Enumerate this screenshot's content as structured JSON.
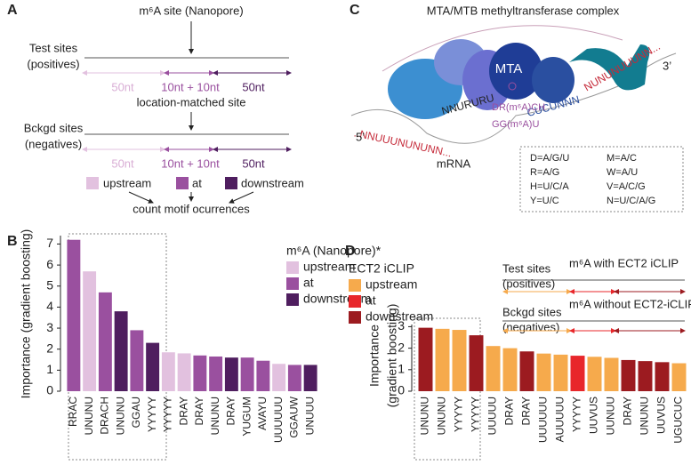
{
  "panel_a": {
    "letter": "A",
    "site": "m⁶A site (Nanopore)",
    "test": [
      "Test sites",
      "(positives)"
    ],
    "matched": "location-matched site",
    "bckgd": [
      "Bckgd sites",
      "(negatives)"
    ],
    "segments": [
      "50nt",
      "10nt + 10nt",
      "50nt"
    ],
    "legend": [
      "upstream",
      "at",
      "downstream"
    ],
    "footer": "count motif ocurrences"
  },
  "panel_c": {
    "letter": "C",
    "title": "MTA/MTB methyltransferase complex",
    "protein": "MTA",
    "mrna": "mRNA",
    "five": "5’",
    "three": "3’",
    "seq": [
      "..NNUUUNUNUNN...",
      "NNURURU",
      "CUCUNNN",
      "NUNUNUUUNN..."
    ],
    "motifs": [
      "DR(m⁶A)CH",
      "GG(m⁶A)U"
    ],
    "key": [
      "D=A/G/U",
      "R=A/G",
      "H=U/C/A",
      "Y=U/C",
      "M=A/C",
      "W=A/U",
      "V=A/C/G",
      "N=U/C/A/G"
    ]
  },
  "panel_d": {
    "letter": "D",
    "test": [
      "Test sites",
      "(positives)"
    ],
    "with": "m⁶A with ECT2 iCLIP",
    "bckgd": [
      "Bckgd sites",
      "(negatives)"
    ],
    "without": "m⁶A without ECT2-iCLIP"
  },
  "chart_data": [
    {
      "type": "bar",
      "panel": "B",
      "ylabel": [
        "Importance (gradient boosting)"
      ],
      "legend_title": "m⁶A (Nanopore)*",
      "categories": [
        "RRAC",
        "UNUNU",
        "DRACH",
        "UNUNU",
        "GGAU",
        "YYYYY",
        "YYYYY",
        "DRAY",
        "DRAY",
        "UNUNU",
        "DRAY",
        "YUGUM",
        "AVAYU",
        "UUUUUU",
        "GGAUW",
        "UNUUU"
      ],
      "series": [
        {
          "name": "upstream",
          "color": "#e2c1df",
          "values": [
            null,
            5.7,
            null,
            null,
            null,
            null,
            1.85,
            1.8,
            null,
            null,
            null,
            null,
            null,
            1.3,
            null,
            null
          ]
        },
        {
          "name": "at",
          "color": "#9a509f",
          "values": [
            7.2,
            null,
            4.7,
            null,
            2.9,
            null,
            null,
            null,
            1.7,
            1.65,
            null,
            1.6,
            1.45,
            null,
            1.25,
            null
          ]
        },
        {
          "name": "downstream",
          "color": "#4f1e5f",
          "values": [
            null,
            null,
            null,
            3.8,
            null,
            2.3,
            null,
            null,
            null,
            null,
            1.6,
            null,
            null,
            null,
            null,
            1.25
          ]
        }
      ],
      "ylim": [
        0,
        7.4
      ],
      "yticks": [
        0,
        1,
        2,
        3,
        4,
        5,
        6,
        7
      ]
    },
    {
      "type": "bar",
      "panel": "D",
      "ylabel": [
        "Importance",
        "(gradient boosting)"
      ],
      "legend_title": "ECT2 iCLIP",
      "categories": [
        "UNUNU",
        "UNUNU",
        "YYYYY",
        "YYYYY",
        "UUUUU",
        "DRAY",
        "DRAY",
        "UUUUUU",
        "AUUUUU",
        "YYYYY",
        "UUVUS",
        "UUNUU",
        "DRAY",
        "UNUNU",
        "UUVUS",
        "UGUCUC"
      ],
      "series": [
        {
          "name": "upstream",
          "color": "#f6aa4c",
          "values": [
            null,
            2.9,
            2.85,
            null,
            2.1,
            2.0,
            null,
            1.75,
            1.7,
            null,
            1.6,
            1.55,
            null,
            null,
            null,
            1.3
          ]
        },
        {
          "name": "at",
          "color": "#e8272b",
          "values": [
            null,
            null,
            null,
            null,
            null,
            null,
            null,
            null,
            null,
            1.65,
            null,
            null,
            null,
            null,
            null,
            null
          ]
        },
        {
          "name": "downstream",
          "color": "#9c1b20",
          "values": [
            2.95,
            null,
            null,
            2.6,
            null,
            null,
            1.85,
            null,
            null,
            null,
            null,
            null,
            1.45,
            1.4,
            1.35,
            null
          ]
        }
      ],
      "ylim": [
        0,
        3.1
      ],
      "yticks": [
        0,
        1,
        2,
        3
      ]
    }
  ]
}
